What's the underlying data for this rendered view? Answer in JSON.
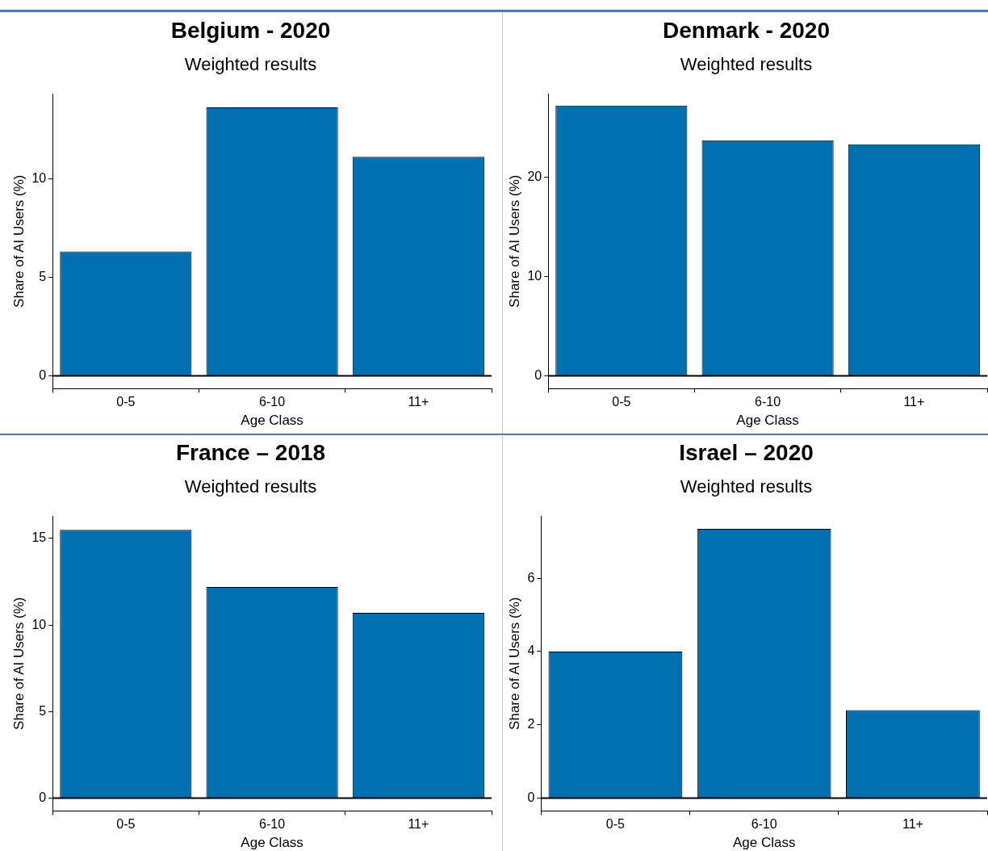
{
  "chart_data": [
    {
      "type": "bar",
      "title": "Belgium - 2020",
      "subtitle": "Weighted results",
      "xlabel": "Age Class",
      "ylabel": "Share of AI Users (%)",
      "categories": [
        "0-5",
        "6-10",
        "11+"
      ],
      "values": [
        6.3,
        13.6,
        11.1
      ],
      "color": "#0070b0",
      "ylim": [
        -0.65,
        14.3
      ],
      "yticks": [
        0,
        5,
        10
      ],
      "grid": false,
      "ref_lines": [
        {
          "axis": "y",
          "value": 0,
          "color": "#000000"
        }
      ]
    },
    {
      "type": "bar",
      "title": "Denmark - 2020",
      "subtitle": "Weighted results",
      "xlabel": "Age Class",
      "ylabel": "Share of AI Users (%)",
      "categories": [
        "0-5",
        "6-10",
        "11+"
      ],
      "values": [
        27.2,
        23.7,
        23.3
      ],
      "color": "#0070b0",
      "ylim": [
        -1.3,
        28.4
      ],
      "yticks": [
        0,
        10,
        20
      ],
      "grid": false,
      "ref_lines": [
        {
          "axis": "y",
          "value": 0,
          "color": "#000000"
        }
      ]
    },
    {
      "type": "bar",
      "title": "France – 2018",
      "subtitle": "Weighted results",
      "xlabel": "Age Class",
      "ylabel": "Share of AI Users (%)",
      "categories": [
        "0-5",
        "6-10",
        "11+"
      ],
      "values": [
        15.5,
        12.2,
        10.7
      ],
      "color": "#0070b0",
      "ylim": [
        -0.74,
        16.3
      ],
      "yticks": [
        0,
        5,
        10,
        15
      ],
      "grid": false,
      "ref_lines": [
        {
          "axis": "y",
          "value": 0,
          "color": "#000000"
        }
      ]
    },
    {
      "type": "bar",
      "title": "Israel – 2020",
      "subtitle": "Weighted results",
      "xlabel": "Age Class",
      "ylabel": "Share of AI Users (%)",
      "categories": [
        "0-5",
        "6-10",
        "11+"
      ],
      "values": [
        4.0,
        7.35,
        2.4
      ],
      "color": "#0070b0",
      "ylim": [
        -0.35,
        7.7
      ],
      "yticks": [
        0,
        2,
        4,
        6
      ],
      "grid": false,
      "ref_lines": [
        {
          "axis": "y",
          "value": 0,
          "color": "#000000"
        }
      ]
    }
  ]
}
